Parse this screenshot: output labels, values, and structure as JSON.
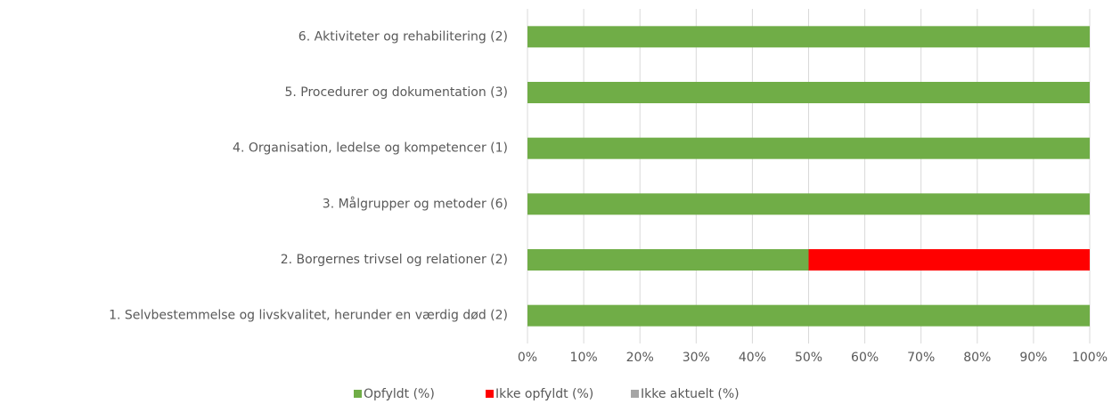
{
  "chart_data": {
    "type": "stacked-bar-horizontal",
    "categories": [
      "1. Selvbestemmelse og livskvalitet, herunder en værdig død (2)",
      "2. Borgernes trivsel og relationer (2)",
      "3. Målgrupper og metoder (6)",
      "4. Organisation, ledelse og kompetencer (1)",
      "5. Procedurer og dokumentation (3)",
      "6. Aktiviteter og rehabilitering (2)"
    ],
    "series": [
      {
        "name": "Opfyldt (%)",
        "color": "#70ad47",
        "values": [
          100,
          50,
          100,
          100,
          100,
          100
        ]
      },
      {
        "name": "Ikke opfyldt (%)",
        "color": "#ff0000",
        "values": [
          0,
          50,
          0,
          0,
          0,
          0
        ]
      },
      {
        "name": "Ikke aktuelt (%)",
        "color": "#a5a5a5",
        "values": [
          0,
          0,
          0,
          0,
          0,
          0
        ]
      }
    ],
    "xlim": [
      0,
      100
    ],
    "xticks": [
      {
        "value": 0,
        "label": "0%"
      },
      {
        "value": 10,
        "label": "10%"
      },
      {
        "value": 20,
        "label": "20%"
      },
      {
        "value": 30,
        "label": "30%"
      },
      {
        "value": 40,
        "label": "40%"
      },
      {
        "value": 50,
        "label": "50%"
      },
      {
        "value": 60,
        "label": "60%"
      },
      {
        "value": 70,
        "label": "70%"
      },
      {
        "value": 80,
        "label": "80%"
      },
      {
        "value": 90,
        "label": "90%"
      },
      {
        "value": 100,
        "label": "100%"
      }
    ],
    "grid": true,
    "legend": "bottom"
  }
}
